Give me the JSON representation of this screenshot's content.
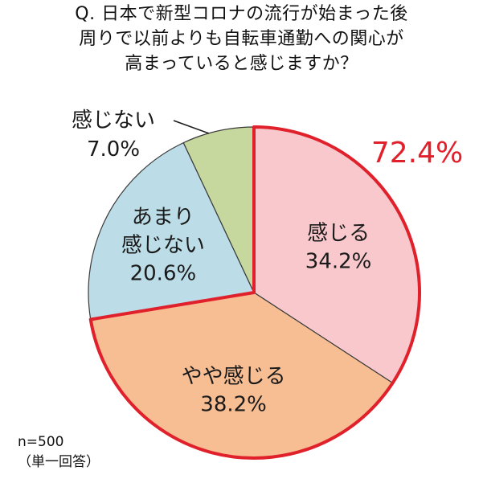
{
  "chart_data": {
    "type": "pie",
    "title_lines": [
      "Q. 日本で新型コロナの流行が始まった後",
      "周りで以前よりも自転車通勤への関心が",
      "高まっていると感じますか？"
    ],
    "slices": [
      {
        "label_lines": [
          "感じる"
        ],
        "value": 34.2,
        "value_text": "34.2%",
        "color": "#f8c8cc"
      },
      {
        "label_lines": [
          "やや感じる"
        ],
        "value": 38.2,
        "value_text": "38.2%",
        "color": "#f7bd93"
      },
      {
        "label_lines": [
          "あまり",
          "感じない"
        ],
        "value": 20.6,
        "value_text": "20.6%",
        "color": "#bcdde8"
      },
      {
        "label_lines": [
          "感じない"
        ],
        "value": 7.0,
        "value_text": "7.0%",
        "color": "#c6d89d"
      }
    ],
    "highlight_total": {
      "text": "72.4%",
      "color": "#e0202a"
    },
    "sample_size": "n=500",
    "answer_type": "（単一回答）"
  }
}
